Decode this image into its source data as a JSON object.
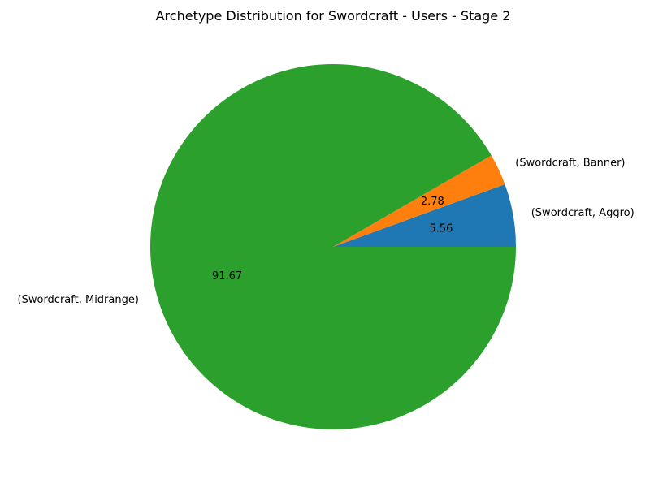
{
  "chart_data": {
    "type": "pie",
    "title": "Archetype Distribution for Swordcraft - Users - Stage 2",
    "slices": [
      {
        "label": "(Swordcraft, Aggro)",
        "value": 5.56,
        "value_label": "5.56",
        "color": "#1f77b4"
      },
      {
        "label": "(Swordcraft, Banner)",
        "value": 2.78,
        "value_label": "2.78",
        "color": "#ff7f0e"
      },
      {
        "label": "(Swordcraft, Midrange)",
        "value": 91.67,
        "value_label": "91.67",
        "color": "#2ca02c"
      }
    ],
    "start_angle_deg": 0,
    "direction": "counterclockwise",
    "legend": "none"
  }
}
